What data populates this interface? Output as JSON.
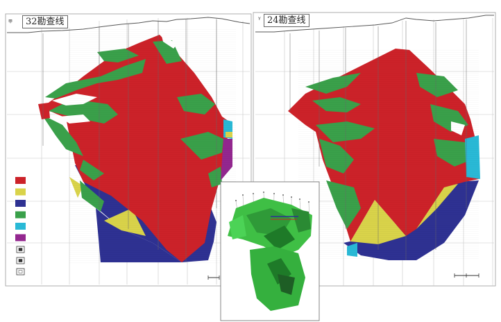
{
  "panels": [
    {
      "id": "left",
      "title": "32勘查线",
      "prefix": "甲"
    },
    {
      "id": "right",
      "title": "24勘查线",
      "prefix": "Y"
    }
  ],
  "legend": [
    {
      "name": "red-unit",
      "color": "#cc2229"
    },
    {
      "name": "yellow-unit",
      "color": "#d9d34a"
    },
    {
      "name": "blue-unit",
      "color": "#2e3192"
    },
    {
      "name": "green-unit",
      "color": "#3aa04a"
    },
    {
      "name": "cyan-unit",
      "color": "#29b9d6"
    },
    {
      "name": "purple-unit",
      "color": "#93278f"
    }
  ],
  "legend_symbols": [
    "drillhole-symbol-1",
    "drillhole-symbol-2",
    "drillhole-symbol-3"
  ],
  "colors": {
    "red": "#cc2229",
    "yellow": "#d9d34a",
    "blue": "#2e3192",
    "green": "#3aa04a",
    "cyan": "#29b9d6",
    "purple": "#93278f",
    "grid": "#bfbfbf",
    "model_green": "#3fbf45",
    "model_dark": "#1e7a28"
  }
}
